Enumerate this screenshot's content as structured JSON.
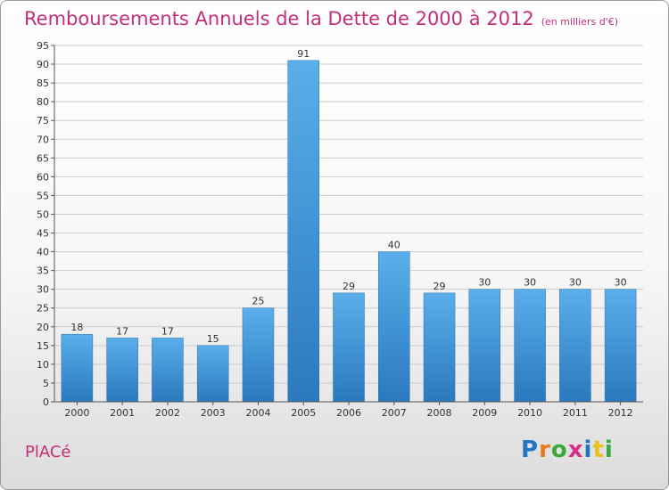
{
  "header": {
    "title": "Remboursements Annuels de la Dette de 2000 à 2012",
    "unit": "(en milliers d'€)"
  },
  "footer": {
    "commune": "PlACé",
    "logo_letters": [
      "P",
      "r",
      "o",
      "x",
      "i",
      "t",
      "i"
    ],
    "logo_colors": [
      "#1f77c4",
      "#e87b1c",
      "#3aa83a",
      "#d62e8a",
      "#1f77c4",
      "#e8c11c",
      "#3aa83a"
    ]
  },
  "colors": {
    "accent": "#c2307a",
    "bar_light": "#5aaeea",
    "bar_dark": "#2a79be",
    "grid": "#cccccc",
    "axis": "#555555"
  },
  "chart_data": {
    "type": "bar",
    "title": "Remboursements Annuels de la Dette de 2000 à 2012",
    "xlabel": "",
    "ylabel": "",
    "categories": [
      "2000",
      "2001",
      "2002",
      "2003",
      "2004",
      "2005",
      "2006",
      "2007",
      "2008",
      "2009",
      "2010",
      "2011",
      "2012"
    ],
    "values": [
      18,
      17,
      17,
      15,
      25,
      91,
      29,
      40,
      29,
      30,
      30,
      30,
      30
    ],
    "ylim": [
      0,
      95
    ],
    "yticks": [
      0,
      5,
      10,
      15,
      20,
      25,
      30,
      35,
      40,
      45,
      50,
      55,
      60,
      65,
      70,
      75,
      80,
      85,
      90,
      95
    ],
    "grid": true
  }
}
